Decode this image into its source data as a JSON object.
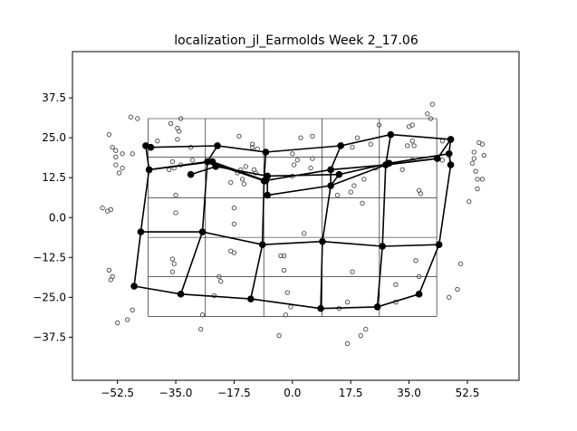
{
  "chart_data": {
    "type": "scatter",
    "title": "localization_jl_Earmolds Week 2_17.06",
    "xlabel": "",
    "ylabel": "",
    "xlim": [
      -66.0,
      68.0
    ],
    "ylim": [
      -51.0,
      52.0
    ],
    "x_ticks": [
      -52.5,
      -35.0,
      -17.5,
      0.0,
      17.5,
      35.0,
      52.5
    ],
    "y_ticks": [
      37.5,
      25.0,
      12.5,
      0.0,
      -12.5,
      -25.0,
      -37.5
    ],
    "x_tick_labels": [
      "−52.5",
      "−35.0",
      "−17.5",
      "0.0",
      "17.5",
      "35.0",
      "52.5"
    ],
    "y_tick_labels": [
      "37.5",
      "25.0",
      "12.5",
      "0.0",
      "−12.5",
      "−25.0",
      "−37.5"
    ],
    "grid": {
      "x_lines": [
        -43.3,
        -26.1,
        -8.6,
        8.9,
        26.1,
        43.3
      ],
      "y_lines": [
        31.0,
        19.0,
        6.2,
        -6.2,
        -18.5,
        -31.0
      ],
      "x_range": [
        -43.3,
        43.3
      ],
      "y_range": [
        -31.0,
        31.0
      ],
      "color": "#000000"
    },
    "targets": {
      "name": "",
      "rows": [
        [
          [
            -44.0,
            22.5
          ],
          [
            -42.5,
            22.0
          ],
          [
            -22.5,
            22.5
          ],
          [
            -8.0,
            20.5
          ],
          [
            14.5,
            22.5
          ],
          [
            29.5,
            26.0
          ],
          [
            47.5,
            24.5
          ]
        ],
        [
          [
            -43.0,
            15.0
          ],
          [
            -25.5,
            17.5
          ],
          [
            -8.5,
            11.5
          ],
          [
            11.5,
            15.0
          ],
          [
            28.0,
            16.5
          ],
          [
            43.5,
            18.5
          ]
        ],
        [
          [
            -30.5,
            13.5
          ],
          [
            -23.0,
            16.0
          ],
          [
            -7.5,
            13.0
          ],
          [
            14.0,
            13.5
          ],
          [
            29.0,
            17.0
          ],
          [
            47.0,
            20.0
          ],
          [
            47.5,
            16.5
          ]
        ],
        [
          [
            -45.5,
            -4.5
          ],
          [
            -27.0,
            -4.5
          ],
          [
            -9.0,
            -8.5
          ],
          [
            9.0,
            -7.5
          ],
          [
            27.0,
            -9.0
          ],
          [
            44.0,
            -8.5
          ]
        ],
        [
          [
            -47.5,
            -21.5
          ],
          [
            -33.5,
            -24.0
          ],
          [
            -12.5,
            -25.5
          ],
          [
            8.5,
            -28.5
          ],
          [
            25.5,
            -28.0
          ],
          [
            38.0,
            -24.0
          ]
        ]
      ],
      "extra_segments": [
        [
          [
            -43.0,
            15.0
          ],
          [
            -24.0,
            17.5
          ],
          [
            -8.0,
            11.5
          ]
        ],
        [
          [
            -7.5,
            7.0
          ],
          [
            11.5,
            10.0
          ],
          [
            28.0,
            16.5
          ],
          [
            43.5,
            18.5
          ],
          [
            47.5,
            24.5
          ]
        ]
      ],
      "columns": [
        [
          [
            -44.0,
            22.5
          ],
          [
            -43.0,
            15.0
          ],
          [
            -45.5,
            -4.5
          ],
          [
            -47.5,
            -21.5
          ]
        ],
        [
          [
            -22.5,
            22.5
          ],
          [
            -25.5,
            17.5
          ],
          [
            -27.0,
            -4.5
          ],
          [
            -33.5,
            -24.0
          ]
        ],
        [
          [
            -8.0,
            20.5
          ],
          [
            -8.5,
            11.5
          ],
          [
            -9.0,
            -8.5
          ],
          [
            -12.5,
            -25.5
          ]
        ],
        [
          [
            -7.5,
            13.0
          ],
          [
            -7.5,
            7.0
          ]
        ],
        [
          [
            14.5,
            22.5
          ],
          [
            11.5,
            15.0
          ],
          [
            11.5,
            10.0
          ],
          [
            9.0,
            -7.5
          ],
          [
            8.5,
            -28.5
          ]
        ],
        [
          [
            14.0,
            13.5
          ],
          [
            11.5,
            10.0
          ]
        ],
        [
          [
            29.5,
            26.0
          ],
          [
            28.0,
            16.5
          ],
          [
            27.0,
            -9.0
          ],
          [
            25.5,
            -28.0
          ]
        ],
        [
          [
            29.0,
            17.0
          ],
          [
            28.0,
            16.5
          ]
        ],
        [
          [
            47.5,
            24.5
          ],
          [
            47.0,
            20.0
          ],
          [
            47.5,
            16.5
          ],
          [
            44.0,
            -8.5
          ],
          [
            38.0,
            -24.0
          ]
        ]
      ],
      "color": "#000000"
    },
    "responses": {
      "name": "",
      "points": [
        [
          -55,
          26
        ],
        [
          -54,
          22
        ],
        [
          -53,
          21
        ],
        [
          -53,
          19
        ],
        [
          -51,
          20
        ],
        [
          -48,
          20
        ],
        [
          -53,
          16.5
        ],
        [
          -52,
          14
        ],
        [
          -51,
          15.5
        ],
        [
          -48.5,
          31.5
        ],
        [
          -46.5,
          31
        ],
        [
          -57,
          3
        ],
        [
          -55.5,
          2
        ],
        [
          -54.5,
          2.5
        ],
        [
          -55,
          -16.5
        ],
        [
          -54.5,
          -19.5
        ],
        [
          -54,
          -18.5
        ],
        [
          -52.5,
          -33
        ],
        [
          -49.5,
          -32
        ],
        [
          -48,
          -29
        ],
        [
          -40.5,
          24
        ],
        [
          -36.5,
          29.5
        ],
        [
          -34.5,
          28
        ],
        [
          -33.5,
          31
        ],
        [
          -34,
          27
        ],
        [
          -34.5,
          24.5
        ],
        [
          -30.5,
          22
        ],
        [
          -30,
          18
        ],
        [
          -36,
          17.5
        ],
        [
          -35.5,
          15.5
        ],
        [
          -33.5,
          16.5
        ],
        [
          -37,
          15
        ],
        [
          -35,
          7
        ],
        [
          -35,
          1.5
        ],
        [
          -36,
          -13
        ],
        [
          -35.5,
          -14.5
        ],
        [
          -36,
          -17
        ],
        [
          -27.5,
          -35
        ],
        [
          -27,
          -30.5
        ],
        [
          -23.5,
          -24.5
        ],
        [
          -22,
          -18.5
        ],
        [
          -21.5,
          -20
        ],
        [
          -18.5,
          -10.5
        ],
        [
          -17.5,
          -11
        ],
        [
          -17.5,
          -2
        ],
        [
          -17.5,
          3
        ],
        [
          -18.5,
          11
        ],
        [
          -16.5,
          14
        ],
        [
          -15.5,
          15
        ],
        [
          -16,
          25.5
        ],
        [
          -15,
          12
        ],
        [
          -14.5,
          10.5
        ],
        [
          -14,
          16
        ],
        [
          -12,
          23
        ],
        [
          -12,
          22
        ],
        [
          -11.5,
          15
        ],
        [
          -11,
          14
        ],
        [
          -10.5,
          21.5
        ],
        [
          -3.5,
          -12
        ],
        [
          -2.5,
          -16.5
        ],
        [
          -2.5,
          -12
        ],
        [
          -1.5,
          -23.5
        ],
        [
          -2,
          -30.5
        ],
        [
          -0.5,
          -28
        ],
        [
          -4,
          -37
        ],
        [
          0,
          20
        ],
        [
          0,
          13
        ],
        [
          0.5,
          16.5
        ],
        [
          1.5,
          18
        ],
        [
          2.5,
          25
        ],
        [
          3.5,
          -5
        ],
        [
          5.5,
          15.5
        ],
        [
          6,
          25.5
        ],
        [
          6,
          18.5
        ],
        [
          13.5,
          7
        ],
        [
          14,
          -28.5
        ],
        [
          16.5,
          -26.5
        ],
        [
          16.5,
          -39.5
        ],
        [
          17.5,
          8
        ],
        [
          18.5,
          10
        ],
        [
          18,
          22
        ],
        [
          19.5,
          25
        ],
        [
          18,
          -17
        ],
        [
          20.5,
          -37
        ],
        [
          21,
          4.5
        ],
        [
          22,
          -35
        ],
        [
          21.5,
          12
        ],
        [
          23.5,
          23
        ],
        [
          26,
          29
        ],
        [
          25,
          15.5
        ],
        [
          31,
          -21
        ],
        [
          31,
          -26.5
        ],
        [
          33,
          15
        ],
        [
          34.5,
          22.5
        ],
        [
          35,
          28.5
        ],
        [
          36,
          29
        ],
        [
          36,
          24
        ],
        [
          36.5,
          22.5
        ],
        [
          36,
          18
        ],
        [
          37,
          -13.5
        ],
        [
          38,
          -18.5
        ],
        [
          38,
          8.5
        ],
        [
          38.5,
          7.5
        ],
        [
          40.5,
          32.5
        ],
        [
          41.5,
          31
        ],
        [
          42,
          35.5
        ],
        [
          45,
          18
        ],
        [
          45,
          24
        ],
        [
          47,
          -25
        ],
        [
          49.5,
          -22.5
        ],
        [
          50.5,
          -14.5
        ],
        [
          53,
          5
        ],
        [
          54,
          17
        ],
        [
          54.5,
          20.5
        ],
        [
          54.5,
          18.5
        ],
        [
          55,
          14.5
        ],
        [
          55.5,
          12
        ],
        [
          55.5,
          9
        ],
        [
          56,
          23.5
        ],
        [
          57,
          23
        ],
        [
          57,
          12
        ],
        [
          57.5,
          19.5
        ]
      ],
      "color": "#555555"
    }
  }
}
